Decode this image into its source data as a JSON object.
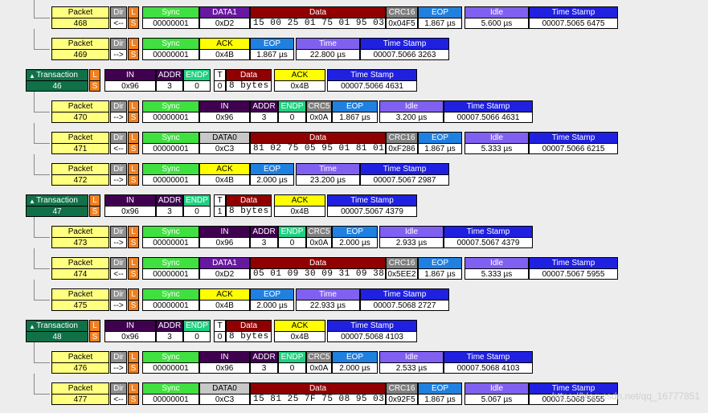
{
  "rows": [
    {
      "kind": "packet",
      "name": "Packet",
      "num": "468",
      "dir": "<--",
      "pid": "DATA1",
      "pid_kind": "data1",
      "sync": "00000001",
      "pid_val": "0xD2",
      "data": "15 00 25 01 75 01 95 03",
      "crc_h": "CRC16",
      "crc": "0x04F5",
      "eop": "1.867 µs",
      "idle_h": "Idle",
      "idle": "5.600 µs",
      "ts": "00007.5065 6475"
    },
    {
      "kind": "handshake",
      "name": "Packet",
      "num": "469",
      "dir": "-->",
      "pid": "ACK",
      "sync": "00000001",
      "pid_val": "0x4B",
      "eop": "1.867 µs",
      "time_h": "Time",
      "time": "22.800 µs",
      "ts": "00007.5066 3263"
    },
    {
      "kind": "trans",
      "name": "Transaction",
      "num": "46",
      "in_val": "0x96",
      "addr": "3",
      "endp": "0",
      "t": "0",
      "data": "8 bytes",
      "ack": "0x4B",
      "ts": "00007.5066 4631"
    },
    {
      "kind": "token",
      "name": "Packet",
      "num": "470",
      "dir": "-->",
      "pid": "IN",
      "sync": "00000001",
      "pid_val": "0x96",
      "addr": "3",
      "endp": "0",
      "crc5": "0x0A",
      "eop": "1.867 µs",
      "idle_h": "Idle",
      "idle": "3.200 µs",
      "ts": "00007.5066 4631"
    },
    {
      "kind": "packet",
      "name": "Packet",
      "num": "471",
      "dir": "<--",
      "pid": "DATA0",
      "pid_kind": "data0",
      "sync": "00000001",
      "pid_val": "0xC3",
      "data": "81 02 75 05 95 01 81 01",
      "crc_h": "CRC16",
      "crc": "0xF286",
      "eop": "1.867 µs",
      "idle_h": "Idle",
      "idle": "5.333 µs",
      "ts": "00007.5066 6215"
    },
    {
      "kind": "handshake",
      "name": "Packet",
      "num": "472",
      "dir": "-->",
      "pid": "ACK",
      "sync": "00000001",
      "pid_val": "0x4B",
      "eop": "2.000 µs",
      "time_h": "Time",
      "time": "23.200 µs",
      "ts": "00007.5067 2987"
    },
    {
      "kind": "trans",
      "name": "Transaction",
      "num": "47",
      "in_val": "0x96",
      "addr": "3",
      "endp": "0",
      "t": "1",
      "data": "8 bytes",
      "ack": "0x4B",
      "ts": "00007.5067 4379"
    },
    {
      "kind": "token",
      "name": "Packet",
      "num": "473",
      "dir": "-->",
      "pid": "IN",
      "sync": "00000001",
      "pid_val": "0x96",
      "addr": "3",
      "endp": "0",
      "crc5": "0x0A",
      "eop": "2.000 µs",
      "idle_h": "Idle",
      "idle": "2.933 µs",
      "ts": "00007.5067 4379"
    },
    {
      "kind": "packet",
      "name": "Packet",
      "num": "474",
      "dir": "<--",
      "pid": "DATA1",
      "pid_kind": "data1",
      "sync": "00000001",
      "pid_val": "0xD2",
      "data": "05 01 09 30 09 31 09 38",
      "crc_h": "CRC16",
      "crc": "0x5EE2",
      "eop": "1.867 µs",
      "idle_h": "Idle",
      "idle": "5.333 µs",
      "ts": "00007.5067 5955"
    },
    {
      "kind": "handshake",
      "name": "Packet",
      "num": "475",
      "dir": "-->",
      "pid": "ACK",
      "sync": "00000001",
      "pid_val": "0x4B",
      "eop": "2.000 µs",
      "time_h": "Time",
      "time": "22.933 µs",
      "ts": "00007.5068 2727"
    },
    {
      "kind": "trans",
      "name": "Transaction",
      "num": "48",
      "in_val": "0x96",
      "addr": "3",
      "endp": "0",
      "t": "0",
      "data": "8 bytes",
      "ack": "0x4B",
      "ts": "00007.5068 4103"
    },
    {
      "kind": "token",
      "name": "Packet",
      "num": "476",
      "dir": "-->",
      "pid": "IN",
      "sync": "00000001",
      "pid_val": "0x96",
      "addr": "3",
      "endp": "0",
      "crc5": "0x0A",
      "eop": "2.000 µs",
      "idle_h": "Idle",
      "idle": "2.533 µs",
      "ts": "00007.5068 4103"
    },
    {
      "kind": "packet",
      "name": "Packet",
      "num": "477",
      "dir": "<--",
      "pid": "DATA0",
      "pid_kind": "data0",
      "sync": "00000001",
      "pid_val": "0xC3",
      "data": "15 81 25 7F 75 08 95 03",
      "crc_h": "CRC16",
      "crc": "0x92F5",
      "eop": "1.867 µs",
      "idle_h": "Idle",
      "idle": "5.067 µs",
      "ts": "00007.5068 5655"
    }
  ],
  "labels": {
    "dir": "Dir",
    "l": "L",
    "s": "S",
    "sync": "Sync",
    "data": "Data",
    "eop": "EOP",
    "ts": "Time Stamp",
    "in": "IN",
    "addr": "ADDR",
    "endp": "ENDP",
    "crc5": "CRC5",
    "t": "T",
    "ack": "ACK"
  },
  "watermark": "https://blog.csdn.net/qq_16777851"
}
